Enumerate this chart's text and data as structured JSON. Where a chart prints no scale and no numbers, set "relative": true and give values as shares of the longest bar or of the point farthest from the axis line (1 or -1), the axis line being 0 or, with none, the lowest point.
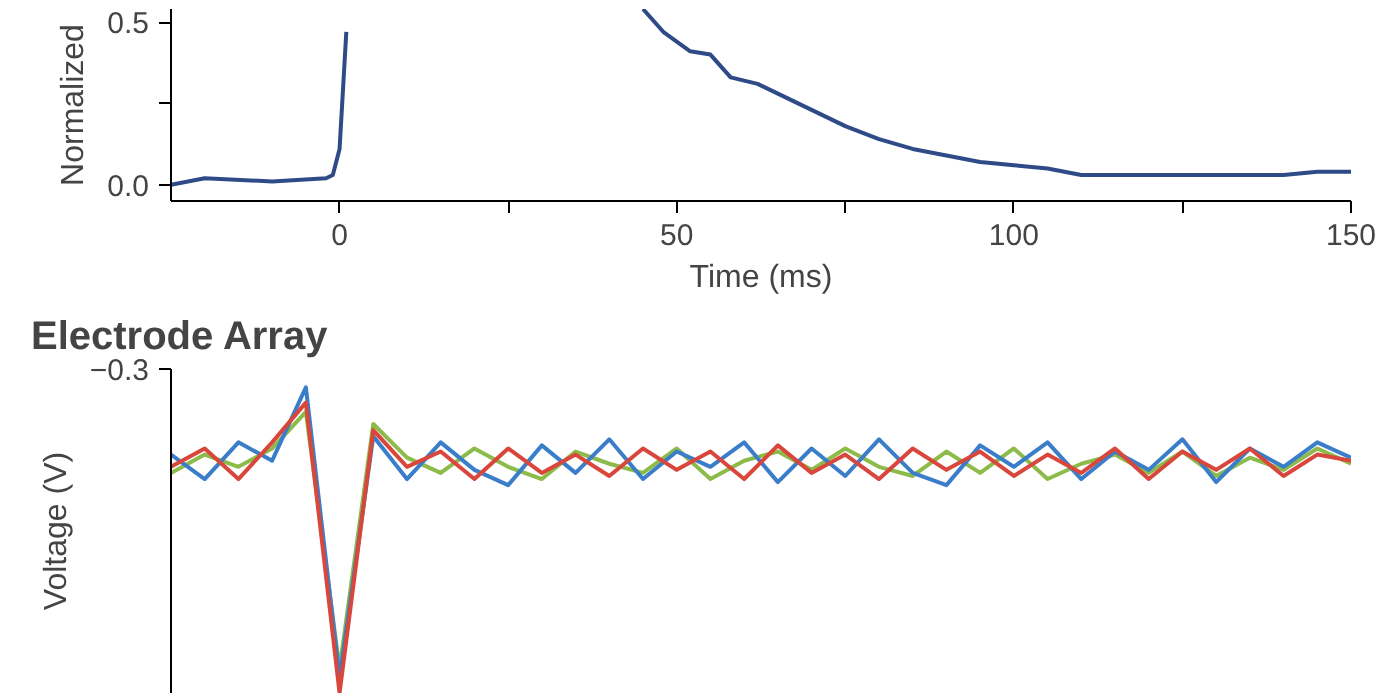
{
  "chart_data": [
    {
      "type": "line",
      "ylabel": "Normalized",
      "xlabel": "Time (ms)",
      "xlim": [
        -25,
        150
      ],
      "ylim": [
        -0.05,
        0.54
      ],
      "xticks": [
        0,
        50,
        100,
        150,
        {
          "value": 25,
          "label": null
        },
        {
          "value": 75,
          "label": null
        },
        {
          "value": 125,
          "label": null
        }
      ],
      "yticks": [
        {
          "value": 0,
          "label": "0.0"
        },
        {
          "value": 0.5,
          "label": "0.5"
        },
        {
          "value": 0.25,
          "label": null
        }
      ],
      "x": [
        -25,
        -20,
        -10,
        -2,
        -1,
        0,
        1,
        2,
        45,
        48,
        52,
        55,
        58,
        62,
        65,
        70,
        75,
        80,
        85,
        90,
        95,
        100,
        105,
        110,
        120,
        130,
        140,
        145,
        150
      ],
      "series": [
        {
          "color": "#2e4a87",
          "values": [
            0.0,
            0.02,
            0.01,
            0.02,
            0.03,
            0.11,
            0.47,
            null,
            0.54,
            0.47,
            0.41,
            0.4,
            0.33,
            0.31,
            0.28,
            0.23,
            0.18,
            0.14,
            0.11,
            0.09,
            0.07,
            0.06,
            0.05,
            0.03,
            0.03,
            0.03,
            0.03,
            0.04,
            0.04
          ]
        }
      ]
    },
    {
      "type": "line",
      "title": "Electrode Array",
      "ylabel": "Voltage (V)",
      "relative": true,
      "annotations": [
        "−0.3"
      ],
      "tick_labels": false,
      "categories": [
        null,
        null,
        null,
        null,
        null,
        null,
        null,
        null,
        null,
        null,
        null,
        null,
        null,
        null,
        null,
        null,
        null,
        null,
        null,
        null,
        null,
        null,
        null,
        null,
        null,
        null,
        null,
        null,
        null,
        null,
        null,
        null,
        null,
        null,
        null,
        null
      ],
      "series": [
        {
          "color": "#8dbb4a",
          "values": [
            0.72,
            0.78,
            0.74,
            0.8,
            0.92,
            0.08,
            0.88,
            0.77,
            0.72,
            0.8,
            0.74,
            0.7,
            0.79,
            0.75,
            0.72,
            0.8,
            0.7,
            0.76,
            0.79,
            0.73,
            0.8,
            0.74,
            0.71,
            0.79,
            0.72,
            0.8,
            0.7,
            0.75,
            0.78,
            0.72,
            0.79,
            0.71,
            0.77,
            0.73,
            0.8,
            0.75
          ]
        },
        {
          "color": "#3a7dc9",
          "values": [
            0.78,
            0.7,
            0.82,
            0.76,
            1.0,
            0.05,
            0.84,
            0.7,
            0.82,
            0.73,
            0.68,
            0.81,
            0.72,
            0.83,
            0.7,
            0.79,
            0.74,
            0.82,
            0.69,
            0.8,
            0.71,
            0.83,
            0.72,
            0.68,
            0.81,
            0.74,
            0.82,
            0.7,
            0.79,
            0.73,
            0.83,
            0.69,
            0.8,
            0.74,
            0.82,
            0.77
          ]
        },
        {
          "color": "#d9463b",
          "values": [
            0.74,
            0.8,
            0.7,
            0.82,
            0.95,
            0.0,
            0.86,
            0.74,
            0.79,
            0.7,
            0.8,
            0.72,
            0.78,
            0.71,
            0.8,
            0.73,
            0.79,
            0.7,
            0.81,
            0.72,
            0.78,
            0.7,
            0.8,
            0.73,
            0.79,
            0.71,
            0.78,
            0.72,
            0.8,
            0.7,
            0.79,
            0.73,
            0.8,
            0.71,
            0.78,
            0.76
          ]
        }
      ]
    }
  ]
}
